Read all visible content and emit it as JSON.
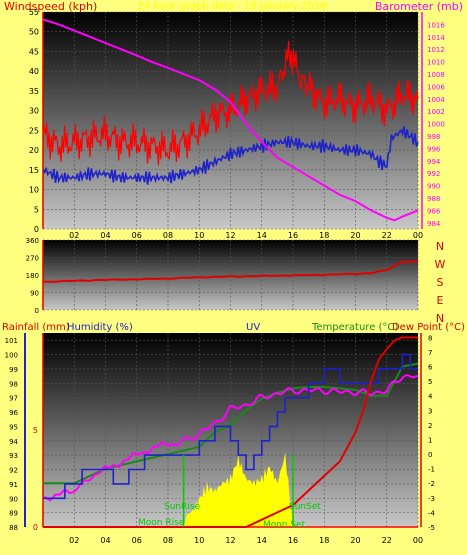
{
  "colors": {
    "background": "#ffff80",
    "wind_gust": "#ff0000",
    "wind_avg": "#1e22c8",
    "barometer": "#ff00ff",
    "direction": "#e00000",
    "temperature": "#e00000",
    "humidity": "#1e22c8",
    "dew_point": "#ff00ff",
    "uv": "#ff00ff",
    "solar": "#ffff00",
    "sunrise_sunset": "#00cc00",
    "moon": "#00cc00",
    "axis_left": "#e00000",
    "axis_rain": "#1e22c8",
    "axis_right": "#1a8a1a",
    "header": "#ffff00"
  },
  "header_title": "24 hour graph data - 19 January 2016",
  "top_panel": {
    "left_title": "Windspeed (kph)",
    "right_title": "Barometer (mb)",
    "left_ticks": [
      "55",
      "50",
      "45",
      "40",
      "35",
      "30",
      "25",
      "20",
      "15",
      "10",
      "5",
      "0"
    ],
    "right_ticks": [
      "1016",
      "1014",
      "1012",
      "1010",
      "1008",
      "1006",
      "1004",
      "1002",
      "1000",
      "998",
      "996",
      "994",
      "992",
      "990",
      "988",
      "986",
      "984"
    ]
  },
  "middle_panel": {
    "left_ticks": [
      "360",
      "270",
      "180",
      "90",
      "0"
    ],
    "compass": [
      "N",
      "W",
      "S",
      "E",
      "N"
    ]
  },
  "bottom_panel": {
    "title_rain": "Rainfall (mm)",
    "title_humidity": "Humidity (%)",
    "title_uv": "UV",
    "title_temperature": "Temperature (°C)",
    "title_dew": "Dew Point (°C)",
    "rain_ticks": [
      "5",
      "0"
    ],
    "humidity_ticks": [
      "101",
      "100",
      "99",
      "98",
      "97",
      "96",
      "95",
      "94",
      "93",
      "92",
      "91",
      "90",
      "89",
      "88"
    ],
    "temp_ticks": [
      "8",
      "7",
      "6",
      "5",
      "4",
      "3",
      "2",
      "1",
      "0",
      "-1",
      "-2",
      "-3",
      "-4",
      "-5"
    ],
    "annotations": {
      "sunrise": "SunRise",
      "sunset": "SunSet",
      "moonrise": "Moon Rise",
      "moonset": "Moon Set"
    }
  },
  "x_labels": [
    "02",
    "04",
    "06",
    "08",
    "10",
    "12",
    "14",
    "16",
    "18",
    "20",
    "22",
    "00"
  ],
  "chart_data": [
    {
      "type": "line",
      "title": "24 hour graph data - 19 January 2016",
      "x_unit": "hour",
      "xlim": [
        0,
        24
      ],
      "series": [
        {
          "name": "Windspeed (kph)",
          "axis": "left",
          "ylim": [
            0,
            55
          ],
          "points": [
            [
              0,
              24
            ],
            [
              1,
              21
            ],
            [
              2,
              22
            ],
            [
              3,
              23
            ],
            [
              4,
              24
            ],
            [
              5,
              22
            ],
            [
              6,
              22
            ],
            [
              7,
              21
            ],
            [
              8,
              20
            ],
            [
              9,
              22
            ],
            [
              10,
              25
            ],
            [
              11,
              29
            ],
            [
              12,
              30
            ],
            [
              13,
              33
            ],
            [
              14,
              35
            ],
            [
              15,
              36
            ],
            [
              15.8,
              45
            ],
            [
              16.5,
              38
            ],
            [
              17,
              36
            ],
            [
              18,
              32
            ],
            [
              19,
              33
            ],
            [
              20,
              31
            ],
            [
              21,
              33
            ],
            [
              22,
              30
            ],
            [
              23,
              34
            ],
            [
              24,
              33
            ]
          ]
        },
        {
          "name": "Windspeed (kph) average",
          "axis": "left",
          "ylim": [
            0,
            55
          ],
          "points": [
            [
              0,
              15
            ],
            [
              1,
              13
            ],
            [
              2,
              13
            ],
            [
              3,
              14
            ],
            [
              4,
              14
            ],
            [
              5,
              13
            ],
            [
              6,
              13
            ],
            [
              7,
              13
            ],
            [
              8,
              13
            ],
            [
              9,
              14
            ],
            [
              10,
              15
            ],
            [
              11,
              17
            ],
            [
              12,
              19
            ],
            [
              13,
              20
            ],
            [
              14,
              21
            ],
            [
              15,
              22
            ],
            [
              16,
              22
            ],
            [
              17,
              21
            ],
            [
              18,
              21
            ],
            [
              19,
              20
            ],
            [
              20,
              20
            ],
            [
              21,
              19
            ],
            [
              21.5,
              17
            ],
            [
              22,
              16
            ],
            [
              22.3,
              23
            ],
            [
              23,
              25
            ],
            [
              24,
              22
            ]
          ]
        },
        {
          "name": "Barometer (mb)",
          "axis": "right",
          "ylim": [
            983,
            1018
          ],
          "points": [
            [
              0,
              1016.8
            ],
            [
              1,
              1016.0
            ],
            [
              2,
              1015.0
            ],
            [
              3,
              1014.0
            ],
            [
              4,
              1013.0
            ],
            [
              5,
              1012.0
            ],
            [
              6,
              1011.0
            ],
            [
              7,
              1009.9
            ],
            [
              8,
              1009.0
            ],
            [
              9,
              1008.0
            ],
            [
              10,
              1007.0
            ],
            [
              11,
              1005.5
            ],
            [
              12,
              1003.5
            ],
            [
              13,
              1000.0
            ],
            [
              14,
              997.0
            ],
            [
              15,
              994.5
            ],
            [
              16,
              993.0
            ],
            [
              17,
              991.5
            ],
            [
              18,
              990.0
            ],
            [
              19,
              988.5
            ],
            [
              20,
              987.5
            ],
            [
              21,
              986.0
            ],
            [
              22,
              984.8
            ],
            [
              22.5,
              984.4
            ],
            [
              23,
              985.0
            ],
            [
              24,
              986.0
            ]
          ]
        }
      ]
    },
    {
      "type": "line",
      "x_unit": "hour",
      "xlim": [
        0,
        24
      ],
      "ylim": [
        0,
        360
      ],
      "series": [
        {
          "name": "Wind direction",
          "points": [
            [
              0,
              145
            ],
            [
              2,
              150
            ],
            [
              4,
              155
            ],
            [
              6,
              158
            ],
            [
              8,
              162
            ],
            [
              10,
              168
            ],
            [
              12,
              172
            ],
            [
              14,
              175
            ],
            [
              16,
              178
            ],
            [
              18,
              181
            ],
            [
              20,
              186
            ],
            [
              21,
              190
            ],
            [
              22,
              205
            ],
            [
              23,
              250
            ],
            [
              24,
              248
            ]
          ]
        }
      ]
    },
    {
      "type": "line",
      "x_unit": "hour",
      "xlim": [
        0,
        24
      ],
      "series": [
        {
          "name": "Rainfall (mm)",
          "axis": "rain",
          "ylim": [
            0,
            10
          ],
          "points": [
            [
              0,
              0
            ],
            [
              24,
              0
            ]
          ]
        },
        {
          "name": "Humidity (%)",
          "axis": "humidity",
          "ylim": [
            88,
            101.5
          ],
          "points": [
            [
              0,
              90
            ],
            [
              1,
              90
            ],
            [
              1.4,
              91
            ],
            [
              2,
              91
            ],
            [
              2.5,
              92
            ],
            [
              4,
              92
            ],
            [
              4.5,
              91
            ],
            [
              5,
              91
            ],
            [
              5.5,
              92
            ],
            [
              6,
              92
            ],
            [
              6.5,
              93
            ],
            [
              7.5,
              93
            ],
            [
              8,
              93
            ],
            [
              8.5,
              93
            ],
            [
              9.5,
              93
            ],
            [
              10,
              94
            ],
            [
              11,
              95
            ],
            [
              11.5,
              95
            ],
            [
              12,
              94
            ],
            [
              12.5,
              93
            ],
            [
              13,
              92
            ],
            [
              13.5,
              93
            ],
            [
              14,
              94
            ],
            [
              14.5,
              95
            ],
            [
              15,
              96
            ],
            [
              15.5,
              97
            ],
            [
              16.5,
              97
            ],
            [
              17,
              98
            ],
            [
              17.5,
              98
            ],
            [
              18,
              99
            ],
            [
              19,
              98
            ],
            [
              20,
              98
            ],
            [
              21,
              98
            ],
            [
              21.5,
              99
            ],
            [
              22,
              99
            ],
            [
              23,
              100
            ],
            [
              23.5,
              99
            ],
            [
              24,
              99
            ]
          ]
        },
        {
          "name": "UV",
          "axis": "humidity",
          "ylim": [
            88,
            101.5
          ],
          "points": [
            [
              0,
              90
            ],
            [
              2,
              90.5
            ],
            [
              3,
              91.5
            ],
            [
              5,
              92.5
            ],
            [
              7,
              93.5
            ],
            [
              9,
              94
            ],
            [
              10,
              94.5
            ],
            [
              11,
              95.2
            ],
            [
              12,
              96.2
            ],
            [
              13,
              96.5
            ],
            [
              14,
              97
            ],
            [
              15,
              97.3
            ],
            [
              16,
              97.5
            ],
            [
              17,
              97.5
            ],
            [
              18,
              97.5
            ],
            [
              19,
              97.4
            ],
            [
              20,
              97.4
            ],
            [
              21,
              97.3
            ],
            [
              22,
              97.5
            ],
            [
              23,
              98.5
            ],
            [
              24,
              98.5
            ]
          ]
        },
        {
          "name": "Temperature (°C)",
          "axis": "temperature",
          "ylim": [
            -5,
            8.3
          ],
          "points": [
            [
              0,
              -5
            ],
            [
              13,
              -5
            ],
            [
              14,
              -4.5
            ],
            [
              15,
              -4.0
            ],
            [
              16,
              -3.5
            ],
            [
              17,
              -2.5
            ],
            [
              18,
              -1.5
            ],
            [
              19,
              -0.5
            ],
            [
              20,
              1.5
            ],
            [
              20.5,
              3.0
            ],
            [
              21,
              5.0
            ],
            [
              21.5,
              6.5
            ],
            [
              22,
              7.2
            ],
            [
              22.5,
              7.8
            ],
            [
              23,
              8.0
            ],
            [
              24,
              8.0
            ]
          ]
        },
        {
          "name": "Dew Point (°C)",
          "axis": "temperature",
          "ylim": [
            -5,
            8.3
          ],
          "points": [
            [
              0,
              -2
            ],
            [
              2,
              -2
            ],
            [
              4,
              -1
            ],
            [
              6,
              -0.5
            ],
            [
              8,
              0
            ],
            [
              10,
              0.5
            ],
            [
              11,
              1.5
            ],
            [
              12,
              2
            ],
            [
              13,
              3
            ],
            [
              14,
              3.8
            ],
            [
              15,
              4.2
            ],
            [
              16,
              4.5
            ],
            [
              17,
              4.6
            ],
            [
              18,
              4.6
            ],
            [
              19,
              4.5
            ],
            [
              20,
              4.4
            ],
            [
              21,
              4.0
            ],
            [
              22,
              4.0
            ],
            [
              23,
              6.0
            ],
            [
              24,
              6.2
            ]
          ]
        },
        {
          "name": "Solar",
          "axis": "solar",
          "ylim": [
            0,
            1
          ],
          "points": [
            [
              9,
              0
            ],
            [
              9.2,
              0.15
            ],
            [
              9.6,
              0.2
            ],
            [
              10,
              0.35
            ],
            [
              10.5,
              0.5
            ],
            [
              11,
              0.45
            ],
            [
              11.5,
              0.55
            ],
            [
              12,
              0.6
            ],
            [
              12.5,
              0.85
            ],
            [
              13,
              0.6
            ],
            [
              13.5,
              0.55
            ],
            [
              14,
              0.6
            ],
            [
              14.5,
              0.75
            ],
            [
              15,
              0.55
            ],
            [
              15.5,
              0.9
            ],
            [
              16,
              0
            ]
          ]
        }
      ]
    }
  ]
}
